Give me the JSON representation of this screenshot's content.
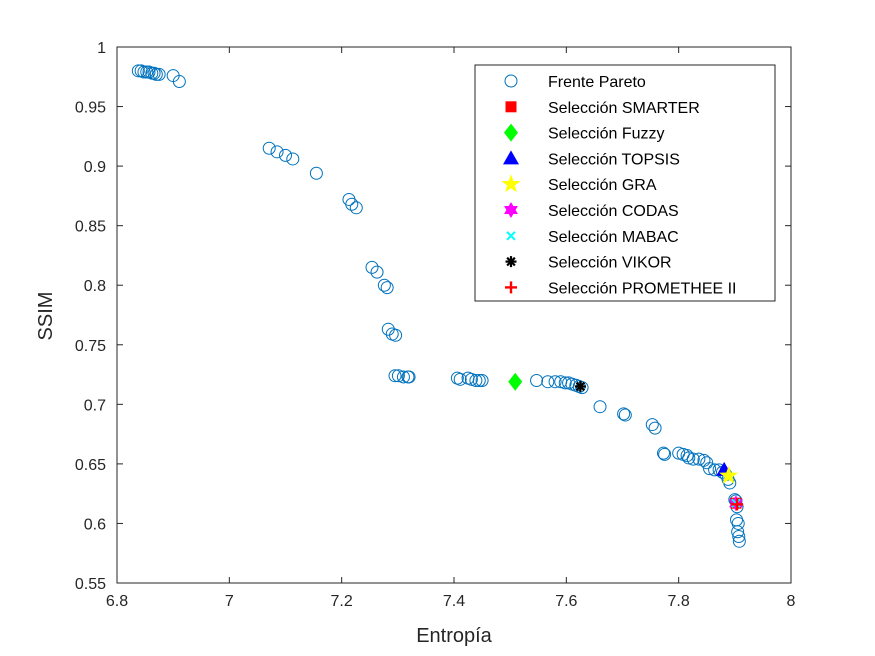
{
  "chart_data": {
    "type": "scatter",
    "title": "",
    "xlabel": "Entropía",
    "ylabel": "SSIM",
    "xlim": [
      6.8,
      8
    ],
    "ylim": [
      0.55,
      1
    ],
    "xticks": [
      6.8,
      7,
      7.2,
      7.4,
      7.6,
      7.8,
      8
    ],
    "xtick_labels": [
      "6.8",
      "7",
      "7.2",
      "7.4",
      "7.6",
      "7.8",
      "8"
    ],
    "yticks": [
      0.55,
      0.6,
      0.65,
      0.7,
      0.75,
      0.8,
      0.85,
      0.9,
      0.95,
      1
    ],
    "ytick_labels": [
      "0.55",
      "0.6",
      "0.65",
      "0.7",
      "0.75",
      "0.8",
      "0.85",
      "0.9",
      "0.95",
      "1"
    ],
    "grid": false,
    "legend_position": "top-right",
    "series": [
      {
        "name": "Frente Pareto",
        "marker": "circle-open",
        "color": "#0072BD",
        "points": [
          [
            6.838,
            0.98
          ],
          [
            6.843,
            0.98
          ],
          [
            6.848,
            0.979
          ],
          [
            6.853,
            0.979
          ],
          [
            6.857,
            0.979
          ],
          [
            6.862,
            0.978
          ],
          [
            6.866,
            0.978
          ],
          [
            6.87,
            0.977
          ],
          [
            6.875,
            0.977
          ],
          [
            6.9,
            0.976
          ],
          [
            6.911,
            0.971
          ],
          [
            7.071,
            0.915
          ],
          [
            7.085,
            0.912
          ],
          [
            7.1,
            0.909
          ],
          [
            7.113,
            0.906
          ],
          [
            7.155,
            0.894
          ],
          [
            7.213,
            0.872
          ],
          [
            7.218,
            0.868
          ],
          [
            7.226,
            0.865
          ],
          [
            7.254,
            0.815
          ],
          [
            7.263,
            0.811
          ],
          [
            7.276,
            0.8
          ],
          [
            7.281,
            0.798
          ],
          [
            7.283,
            0.763
          ],
          [
            7.29,
            0.759
          ],
          [
            7.296,
            0.758
          ],
          [
            7.295,
            0.724
          ],
          [
            7.301,
            0.724
          ],
          [
            7.31,
            0.723
          ],
          [
            7.318,
            0.723
          ],
          [
            7.32,
            0.723
          ],
          [
            7.406,
            0.722
          ],
          [
            7.411,
            0.721
          ],
          [
            7.425,
            0.722
          ],
          [
            7.431,
            0.721
          ],
          [
            7.439,
            0.72
          ],
          [
            7.445,
            0.72
          ],
          [
            7.45,
            0.72
          ],
          [
            7.547,
            0.72
          ],
          [
            7.567,
            0.719
          ],
          [
            7.58,
            0.719
          ],
          [
            7.59,
            0.719
          ],
          [
            7.598,
            0.718
          ],
          [
            7.604,
            0.718
          ],
          [
            7.61,
            0.717
          ],
          [
            7.617,
            0.716
          ],
          [
            7.623,
            0.715
          ],
          [
            7.628,
            0.714
          ],
          [
            7.66,
            0.698
          ],
          [
            7.702,
            0.692
          ],
          [
            7.705,
            0.691
          ],
          [
            7.753,
            0.683
          ],
          [
            7.758,
            0.68
          ],
          [
            7.773,
            0.659
          ],
          [
            7.775,
            0.658
          ],
          [
            7.8,
            0.659
          ],
          [
            7.808,
            0.658
          ],
          [
            7.815,
            0.657
          ],
          [
            7.818,
            0.655
          ],
          [
            7.826,
            0.654
          ],
          [
            7.836,
            0.654
          ],
          [
            7.845,
            0.653
          ],
          [
            7.85,
            0.651
          ],
          [
            7.855,
            0.646
          ],
          [
            7.864,
            0.645
          ],
          [
            7.872,
            0.645
          ],
          [
            7.878,
            0.643
          ],
          [
            7.884,
            0.641
          ],
          [
            7.888,
            0.637
          ],
          [
            7.891,
            0.634
          ],
          [
            7.9,
            0.62
          ],
          [
            7.902,
            0.619
          ],
          [
            7.904,
            0.614
          ],
          [
            7.903,
            0.603
          ],
          [
            7.906,
            0.6
          ],
          [
            7.905,
            0.593
          ],
          [
            7.907,
            0.589
          ],
          [
            7.908,
            0.585
          ]
        ]
      },
      {
        "name": "Selección SMARTER",
        "marker": "square",
        "color": "#FF0000",
        "points": [
          [
            7.902,
            0.617
          ]
        ]
      },
      {
        "name": "Selección Fuzzy",
        "marker": "diamond",
        "color": "#00FF00",
        "points": [
          [
            7.509,
            0.719
          ]
        ]
      },
      {
        "name": "Selección TOPSIS",
        "marker": "triangle-up",
        "color": "#0000FF",
        "points": [
          [
            7.881,
            0.645
          ]
        ]
      },
      {
        "name": "Selección GRA",
        "marker": "pentagram",
        "color": "#FFFF00",
        "points": [
          [
            7.889,
            0.64
          ]
        ]
      },
      {
        "name": "Selección CODAS",
        "marker": "hexagram",
        "color": "#FF00FF",
        "points": [
          [
            7.902,
            0.617
          ]
        ]
      },
      {
        "name": "Selección MABAC",
        "marker": "x",
        "color": "#00FFFF",
        "points": [
          [
            7.902,
            0.617
          ]
        ]
      },
      {
        "name": "Selección VIKOR",
        "marker": "asterisk",
        "color": "#000000",
        "points": [
          [
            7.625,
            0.715
          ]
        ]
      },
      {
        "name": "Selección PROMETHEE II",
        "marker": "plus",
        "color": "#FF0000",
        "points": [
          [
            7.904,
            0.616
          ]
        ]
      }
    ]
  }
}
